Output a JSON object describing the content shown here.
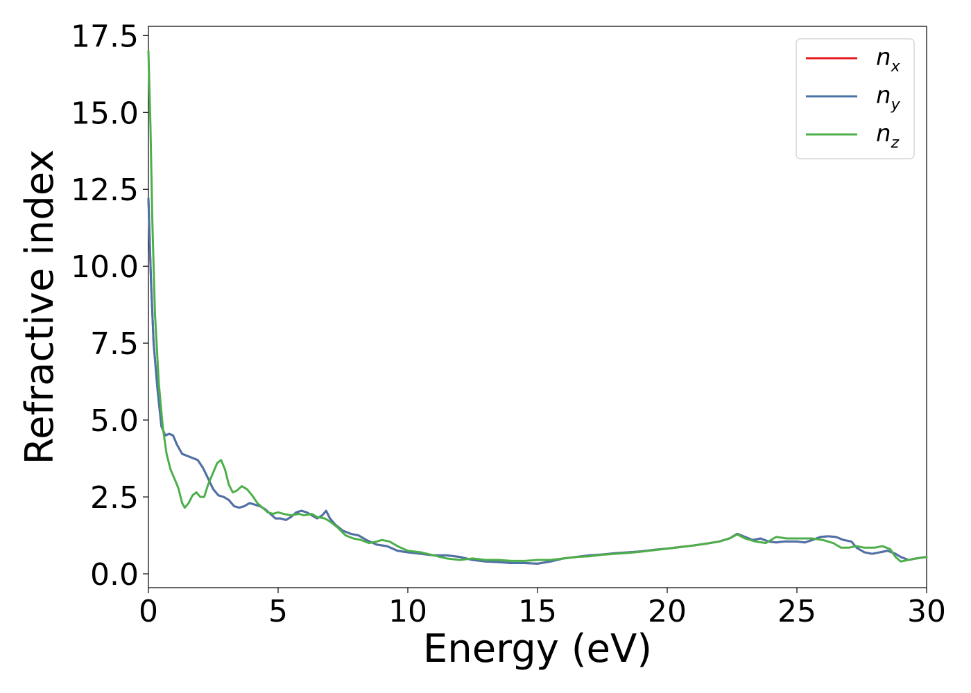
{
  "chart_data": {
    "type": "line",
    "xlabel": "Energy (eV)",
    "ylabel": "Refractive index",
    "xlim": [
      0,
      30
    ],
    "ylim": [
      -0.45,
      17.8
    ],
    "xticks": [
      0,
      5,
      10,
      15,
      20,
      25,
      30
    ],
    "xtick_labels": [
      "0",
      "5",
      "10",
      "15",
      "20",
      "25",
      "30"
    ],
    "yticks": [
      0,
      2.5,
      5,
      7.5,
      10,
      12.5,
      15,
      17.5
    ],
    "ytick_labels": [
      "0.0",
      "2.5",
      "5.0",
      "7.5",
      "10.0",
      "12.5",
      "15.0",
      "17.5"
    ],
    "grid": false,
    "legend_position": "top-right",
    "series": [
      {
        "name": "n_x",
        "label_main": "n",
        "label_sub": "x",
        "color": "#e41a1c",
        "points": [
          [
            0,
            12.2
          ],
          [
            0.1,
            9.5
          ],
          [
            0.2,
            7.5
          ],
          [
            0.35,
            6.0
          ],
          [
            0.5,
            4.8
          ],
          [
            0.65,
            4.5
          ],
          [
            0.8,
            4.55
          ],
          [
            0.95,
            4.5
          ],
          [
            1.1,
            4.2
          ],
          [
            1.3,
            3.9
          ],
          [
            1.6,
            3.8
          ],
          [
            1.9,
            3.7
          ],
          [
            2.1,
            3.45
          ],
          [
            2.3,
            3.1
          ],
          [
            2.5,
            2.75
          ],
          [
            2.7,
            2.55
          ],
          [
            2.9,
            2.5
          ],
          [
            3.1,
            2.4
          ],
          [
            3.3,
            2.2
          ],
          [
            3.5,
            2.15
          ],
          [
            3.7,
            2.2
          ],
          [
            3.9,
            2.3
          ],
          [
            4.1,
            2.25
          ],
          [
            4.3,
            2.2
          ],
          [
            4.5,
            2.1
          ],
          [
            4.7,
            1.95
          ],
          [
            4.9,
            1.8
          ],
          [
            5.1,
            1.8
          ],
          [
            5.3,
            1.75
          ],
          [
            5.5,
            1.85
          ],
          [
            5.7,
            2.0
          ],
          [
            5.9,
            2.05
          ],
          [
            6.1,
            2.0
          ],
          [
            6.3,
            1.9
          ],
          [
            6.5,
            1.8
          ],
          [
            6.7,
            1.9
          ],
          [
            6.85,
            2.05
          ],
          [
            7.0,
            1.8
          ],
          [
            7.2,
            1.6
          ],
          [
            7.5,
            1.4
          ],
          [
            7.8,
            1.3
          ],
          [
            8.1,
            1.25
          ],
          [
            8.4,
            1.1
          ],
          [
            8.8,
            0.95
          ],
          [
            9.2,
            0.9
          ],
          [
            9.6,
            0.75
          ],
          [
            10.0,
            0.7
          ],
          [
            10.5,
            0.65
          ],
          [
            11.0,
            0.6
          ],
          [
            11.5,
            0.6
          ],
          [
            12.0,
            0.55
          ],
          [
            12.5,
            0.45
          ],
          [
            13.0,
            0.4
          ],
          [
            13.5,
            0.38
          ],
          [
            14.0,
            0.35
          ],
          [
            14.5,
            0.35
          ],
          [
            15.0,
            0.33
          ],
          [
            15.5,
            0.4
          ],
          [
            16.0,
            0.5
          ],
          [
            16.5,
            0.55
          ],
          [
            17.0,
            0.6
          ],
          [
            17.5,
            0.63
          ],
          [
            18.0,
            0.67
          ],
          [
            18.5,
            0.7
          ],
          [
            19.0,
            0.73
          ],
          [
            19.5,
            0.78
          ],
          [
            20.0,
            0.82
          ],
          [
            20.5,
            0.87
          ],
          [
            21.0,
            0.92
          ],
          [
            21.5,
            0.98
          ],
          [
            22.0,
            1.05
          ],
          [
            22.4,
            1.15
          ],
          [
            22.7,
            1.3
          ],
          [
            23.0,
            1.2
          ],
          [
            23.3,
            1.1
          ],
          [
            23.6,
            1.15
          ],
          [
            23.9,
            1.05
          ],
          [
            24.2,
            1.02
          ],
          [
            24.5,
            1.05
          ],
          [
            25.0,
            1.05
          ],
          [
            25.3,
            1.02
          ],
          [
            25.6,
            1.1
          ],
          [
            25.9,
            1.2
          ],
          [
            26.2,
            1.22
          ],
          [
            26.5,
            1.2
          ],
          [
            26.8,
            1.1
          ],
          [
            27.1,
            1.05
          ],
          [
            27.3,
            0.85
          ],
          [
            27.6,
            0.7
          ],
          [
            27.9,
            0.65
          ],
          [
            28.2,
            0.7
          ],
          [
            28.5,
            0.75
          ],
          [
            28.8,
            0.65
          ],
          [
            29.0,
            0.55
          ],
          [
            29.3,
            0.45
          ],
          [
            29.6,
            0.5
          ],
          [
            30.0,
            0.55
          ]
        ]
      },
      {
        "name": "n_y",
        "label_main": "n",
        "label_sub": "y",
        "color": "#4a73aa",
        "points": [
          [
            0,
            12.2
          ],
          [
            0.1,
            9.5
          ],
          [
            0.2,
            7.5
          ],
          [
            0.35,
            6.0
          ],
          [
            0.5,
            4.8
          ],
          [
            0.65,
            4.5
          ],
          [
            0.8,
            4.55
          ],
          [
            0.95,
            4.5
          ],
          [
            1.1,
            4.2
          ],
          [
            1.3,
            3.9
          ],
          [
            1.6,
            3.8
          ],
          [
            1.9,
            3.7
          ],
          [
            2.1,
            3.45
          ],
          [
            2.3,
            3.1
          ],
          [
            2.5,
            2.75
          ],
          [
            2.7,
            2.55
          ],
          [
            2.9,
            2.5
          ],
          [
            3.1,
            2.4
          ],
          [
            3.3,
            2.2
          ],
          [
            3.5,
            2.15
          ],
          [
            3.7,
            2.2
          ],
          [
            3.9,
            2.3
          ],
          [
            4.1,
            2.25
          ],
          [
            4.3,
            2.2
          ],
          [
            4.5,
            2.1
          ],
          [
            4.7,
            1.95
          ],
          [
            4.9,
            1.8
          ],
          [
            5.1,
            1.8
          ],
          [
            5.3,
            1.75
          ],
          [
            5.5,
            1.85
          ],
          [
            5.7,
            2.0
          ],
          [
            5.9,
            2.05
          ],
          [
            6.1,
            2.0
          ],
          [
            6.3,
            1.9
          ],
          [
            6.5,
            1.8
          ],
          [
            6.7,
            1.9
          ],
          [
            6.85,
            2.05
          ],
          [
            7.0,
            1.8
          ],
          [
            7.2,
            1.6
          ],
          [
            7.5,
            1.4
          ],
          [
            7.8,
            1.3
          ],
          [
            8.1,
            1.25
          ],
          [
            8.4,
            1.1
          ],
          [
            8.8,
            0.95
          ],
          [
            9.2,
            0.9
          ],
          [
            9.6,
            0.75
          ],
          [
            10.0,
            0.7
          ],
          [
            10.5,
            0.65
          ],
          [
            11.0,
            0.6
          ],
          [
            11.5,
            0.6
          ],
          [
            12.0,
            0.55
          ],
          [
            12.5,
            0.45
          ],
          [
            13.0,
            0.4
          ],
          [
            13.5,
            0.38
          ],
          [
            14.0,
            0.35
          ],
          [
            14.5,
            0.35
          ],
          [
            15.0,
            0.33
          ],
          [
            15.5,
            0.4
          ],
          [
            16.0,
            0.5
          ],
          [
            16.5,
            0.55
          ],
          [
            17.0,
            0.6
          ],
          [
            17.5,
            0.63
          ],
          [
            18.0,
            0.67
          ],
          [
            18.5,
            0.7
          ],
          [
            19.0,
            0.73
          ],
          [
            19.5,
            0.78
          ],
          [
            20.0,
            0.82
          ],
          [
            20.5,
            0.87
          ],
          [
            21.0,
            0.92
          ],
          [
            21.5,
            0.98
          ],
          [
            22.0,
            1.05
          ],
          [
            22.4,
            1.15
          ],
          [
            22.7,
            1.3
          ],
          [
            23.0,
            1.2
          ],
          [
            23.3,
            1.1
          ],
          [
            23.6,
            1.15
          ],
          [
            23.9,
            1.05
          ],
          [
            24.2,
            1.02
          ],
          [
            24.5,
            1.05
          ],
          [
            25.0,
            1.05
          ],
          [
            25.3,
            1.02
          ],
          [
            25.6,
            1.1
          ],
          [
            25.9,
            1.2
          ],
          [
            26.2,
            1.22
          ],
          [
            26.5,
            1.2
          ],
          [
            26.8,
            1.1
          ],
          [
            27.1,
            1.05
          ],
          [
            27.3,
            0.85
          ],
          [
            27.6,
            0.7
          ],
          [
            27.9,
            0.65
          ],
          [
            28.2,
            0.7
          ],
          [
            28.5,
            0.75
          ],
          [
            28.8,
            0.65
          ],
          [
            29.0,
            0.55
          ],
          [
            29.3,
            0.45
          ],
          [
            29.6,
            0.5
          ],
          [
            30.0,
            0.55
          ]
        ]
      },
      {
        "name": "n_z",
        "label_main": "n",
        "label_sub": "z",
        "color": "#4daf4a",
        "points": [
          [
            0,
            17.0
          ],
          [
            0.08,
            14.5
          ],
          [
            0.15,
            11.5
          ],
          [
            0.25,
            8.5
          ],
          [
            0.4,
            6.2
          ],
          [
            0.55,
            4.8
          ],
          [
            0.7,
            3.9
          ],
          [
            0.85,
            3.4
          ],
          [
            1.0,
            3.1
          ],
          [
            1.15,
            2.8
          ],
          [
            1.3,
            2.3
          ],
          [
            1.4,
            2.15
          ],
          [
            1.55,
            2.3
          ],
          [
            1.7,
            2.55
          ],
          [
            1.85,
            2.65
          ],
          [
            2.0,
            2.5
          ],
          [
            2.15,
            2.5
          ],
          [
            2.3,
            2.9
          ],
          [
            2.5,
            3.3
          ],
          [
            2.65,
            3.6
          ],
          [
            2.8,
            3.7
          ],
          [
            2.95,
            3.4
          ],
          [
            3.1,
            2.9
          ],
          [
            3.25,
            2.65
          ],
          [
            3.4,
            2.7
          ],
          [
            3.6,
            2.85
          ],
          [
            3.8,
            2.75
          ],
          [
            4.0,
            2.55
          ],
          [
            4.2,
            2.3
          ],
          [
            4.4,
            2.15
          ],
          [
            4.6,
            2.0
          ],
          [
            4.8,
            1.95
          ],
          [
            5.0,
            2.0
          ],
          [
            5.2,
            1.95
          ],
          [
            5.5,
            1.9
          ],
          [
            5.8,
            1.95
          ],
          [
            6.0,
            1.9
          ],
          [
            6.3,
            1.95
          ],
          [
            6.5,
            1.85
          ],
          [
            6.8,
            1.8
          ],
          [
            7.0,
            1.7
          ],
          [
            7.3,
            1.5
          ],
          [
            7.6,
            1.25
          ],
          [
            7.9,
            1.15
          ],
          [
            8.2,
            1.1
          ],
          [
            8.5,
            1.0
          ],
          [
            8.8,
            1.05
          ],
          [
            9.0,
            1.1
          ],
          [
            9.3,
            1.05
          ],
          [
            9.6,
            0.9
          ],
          [
            10.0,
            0.75
          ],
          [
            10.5,
            0.7
          ],
          [
            11.0,
            0.6
          ],
          [
            11.5,
            0.5
          ],
          [
            12.0,
            0.45
          ],
          [
            12.5,
            0.5
          ],
          [
            13.0,
            0.45
          ],
          [
            13.5,
            0.45
          ],
          [
            14.0,
            0.42
          ],
          [
            14.5,
            0.42
          ],
          [
            15.0,
            0.45
          ],
          [
            15.5,
            0.45
          ],
          [
            16.0,
            0.5
          ],
          [
            16.5,
            0.55
          ],
          [
            17.0,
            0.57
          ],
          [
            17.5,
            0.62
          ],
          [
            18.0,
            0.65
          ],
          [
            18.5,
            0.68
          ],
          [
            19.0,
            0.72
          ],
          [
            19.5,
            0.77
          ],
          [
            20.0,
            0.82
          ],
          [
            20.5,
            0.87
          ],
          [
            21.0,
            0.92
          ],
          [
            21.5,
            0.98
          ],
          [
            22.0,
            1.05
          ],
          [
            22.4,
            1.15
          ],
          [
            22.7,
            1.28
          ],
          [
            23.0,
            1.15
          ],
          [
            23.4,
            1.05
          ],
          [
            23.8,
            1.0
          ],
          [
            24.2,
            1.2
          ],
          [
            24.6,
            1.15
          ],
          [
            25.0,
            1.15
          ],
          [
            25.3,
            1.15
          ],
          [
            25.6,
            1.15
          ],
          [
            26.0,
            1.1
          ],
          [
            26.4,
            1.0
          ],
          [
            26.7,
            0.85
          ],
          [
            27.0,
            0.85
          ],
          [
            27.3,
            0.9
          ],
          [
            27.6,
            0.85
          ],
          [
            28.0,
            0.85
          ],
          [
            28.3,
            0.9
          ],
          [
            28.6,
            0.8
          ],
          [
            28.8,
            0.55
          ],
          [
            29.0,
            0.4
          ],
          [
            29.3,
            0.45
          ],
          [
            29.6,
            0.5
          ],
          [
            30.0,
            0.55
          ]
        ]
      }
    ]
  }
}
